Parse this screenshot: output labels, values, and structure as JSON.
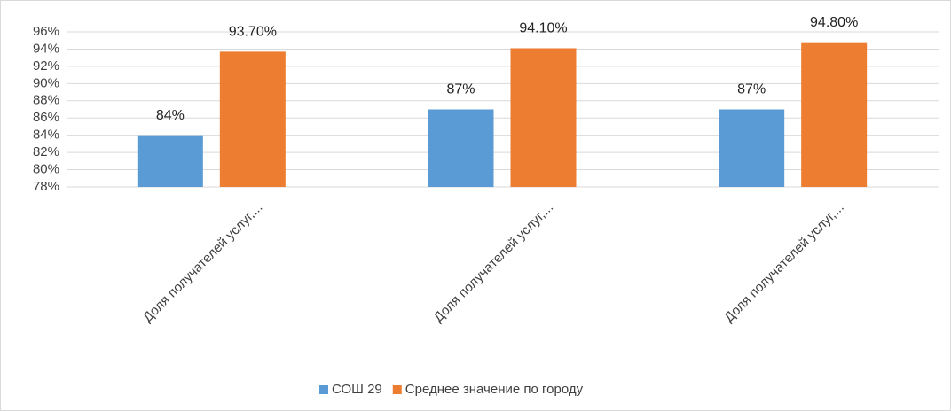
{
  "chart_data": {
    "type": "bar",
    "categories": [
      "Доля получателей услуг,...",
      "Доля получателей услуг,...",
      "Доля получателей услуг,..."
    ],
    "series": [
      {
        "name": "СОШ 29",
        "color": "#5b9bd5",
        "values": [
          84,
          87,
          87
        ],
        "value_labels": [
          "84%",
          "87%",
          "87%"
        ]
      },
      {
        "name": "Среднее значение по городу",
        "color": "#ed7d31",
        "values": [
          93.7,
          94.1,
          94.8
        ],
        "value_labels": [
          "93.70%",
          "94.10%",
          "94.80%"
        ]
      }
    ],
    "ylim": [
      78,
      96
    ],
    "yticks": [
      {
        "value": 78,
        "label": "78%"
      },
      {
        "value": 80,
        "label": "80%"
      },
      {
        "value": 82,
        "label": "82%"
      },
      {
        "value": 84,
        "label": "84%"
      },
      {
        "value": 86,
        "label": "86%"
      },
      {
        "value": 88,
        "label": "88%"
      },
      {
        "value": 90,
        "label": "90%"
      },
      {
        "value": 92,
        "label": "92%"
      },
      {
        "value": 94,
        "label": "94%"
      },
      {
        "value": 96,
        "label": "96%"
      }
    ],
    "grid": true,
    "legend": "bottom"
  }
}
